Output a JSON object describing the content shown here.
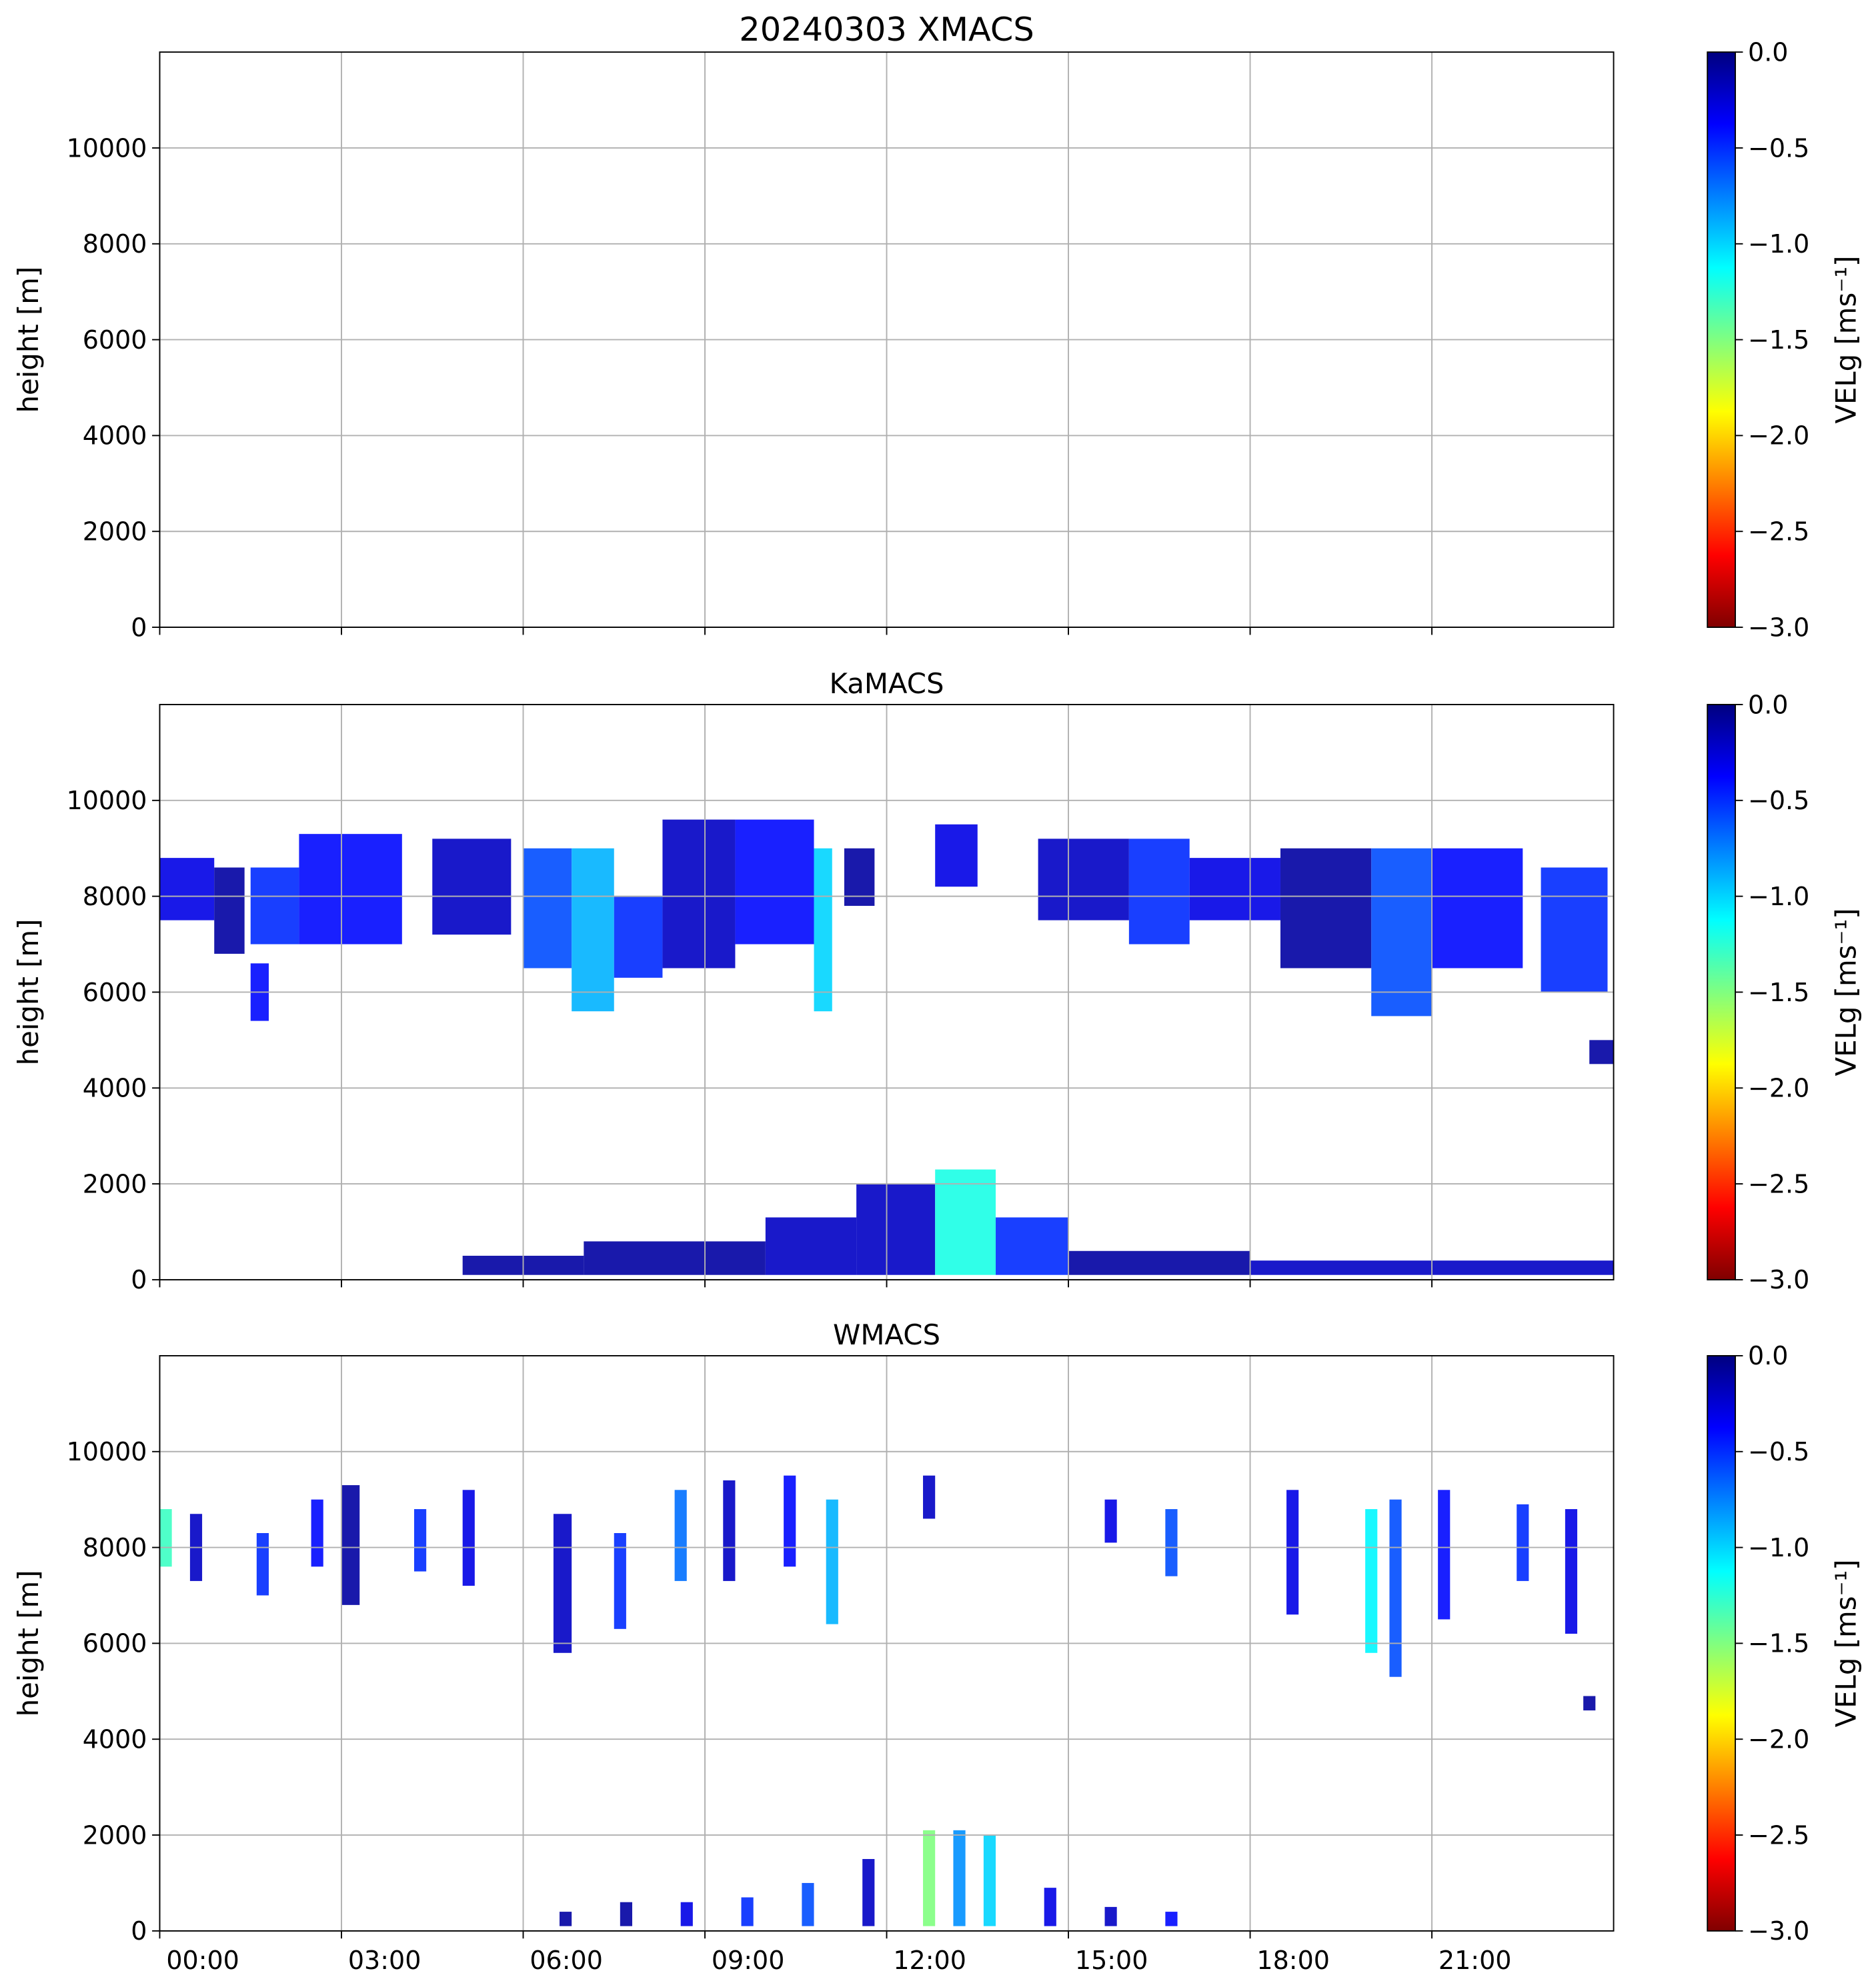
{
  "chart_data": [
    {
      "type": "heatmap",
      "title": "20240303 XMACS",
      "ylabel": "height [m]",
      "xlim": [
        0,
        24
      ],
      "ylim": [
        0,
        12000
      ],
      "yticks": [
        0,
        2000,
        4000,
        6000,
        8000,
        10000
      ],
      "grid": true,
      "colorbar": {
        "label": "VELg [ms⁻¹]",
        "lim": [
          -3,
          0
        ],
        "colormap": "jet_r",
        "ticks": [
          {
            "value": 0,
            "label": "0.0"
          },
          {
            "value": -0.5,
            "label": "−0.5"
          },
          {
            "value": -1,
            "label": "−1.0"
          },
          {
            "value": -1.5,
            "label": "−1.5"
          },
          {
            "value": -2,
            "label": "−2.0"
          },
          {
            "value": -2.5,
            "label": "−2.5"
          },
          {
            "value": -3,
            "label": "−3.0"
          }
        ]
      },
      "echoes": []
    },
    {
      "type": "heatmap",
      "title": "KaMACS",
      "ylabel": "height [m]",
      "xlim": [
        0,
        24
      ],
      "ylim": [
        0,
        12000
      ],
      "yticks": [
        0,
        2000,
        4000,
        6000,
        8000,
        10000
      ],
      "grid": true,
      "colorbar": {
        "label": "VELg [ms⁻¹]",
        "lim": [
          -3,
          0
        ],
        "colormap": "jet_r",
        "ticks": [
          {
            "value": 0,
            "label": "0.0"
          },
          {
            "value": -0.5,
            "label": "−0.5"
          },
          {
            "value": -1,
            "label": "−1.0"
          },
          {
            "value": -1.5,
            "label": "−1.5"
          },
          {
            "value": -2,
            "label": "−2.0"
          },
          {
            "value": -2.5,
            "label": "−2.5"
          },
          {
            "value": -3,
            "label": "−3.0"
          }
        ]
      },
      "echoes": [
        {
          "x0": 0,
          "x1": 0.9,
          "y0": 7500,
          "y1": 8800,
          "value": -0.3
        },
        {
          "x0": 0.9,
          "x1": 1.4,
          "y0": 6800,
          "y1": 8600,
          "value": -0.1
        },
        {
          "x0": 1.5,
          "x1": 2.3,
          "y0": 7000,
          "y1": 8600,
          "value": -0.5
        },
        {
          "x0": 1.5,
          "x1": 1.8,
          "y0": 5400,
          "y1": 6600,
          "value": -0.4
        },
        {
          "x0": 2.3,
          "x1": 4,
          "y0": 7000,
          "y1": 9300,
          "value": -0.4
        },
        {
          "x0": 4.5,
          "x1": 5.8,
          "y0": 7200,
          "y1": 9200,
          "value": -0.2
        },
        {
          "x0": 6,
          "x1": 6.8,
          "y0": 6500,
          "y1": 9000,
          "value": -0.6
        },
        {
          "x0": 6.8,
          "x1": 7.5,
          "y0": 5600,
          "y1": 9000,
          "value": -0.9
        },
        {
          "x0": 7.5,
          "x1": 8.3,
          "y0": 6300,
          "y1": 8000,
          "value": -0.5
        },
        {
          "x0": 8.3,
          "x1": 9.5,
          "y0": 6500,
          "y1": 9600,
          "value": -0.2
        },
        {
          "x0": 9.5,
          "x1": 10.8,
          "y0": 7000,
          "y1": 9600,
          "value": -0.4
        },
        {
          "x0": 10.8,
          "x1": 11.1,
          "y0": 5600,
          "y1": 9000,
          "value": -1.0
        },
        {
          "x0": 11.3,
          "x1": 11.8,
          "y0": 7800,
          "y1": 9000,
          "value": -0.1
        },
        {
          "x0": 12.8,
          "x1": 13.5,
          "y0": 8200,
          "y1": 9500,
          "value": -0.3
        },
        {
          "x0": 14.5,
          "x1": 16,
          "y0": 7500,
          "y1": 9200,
          "value": -0.2
        },
        {
          "x0": 16,
          "x1": 17,
          "y0": 7000,
          "y1": 9200,
          "value": -0.5
        },
        {
          "x0": 17,
          "x1": 18.5,
          "y0": 7500,
          "y1": 8800,
          "value": -0.3
        },
        {
          "x0": 18.5,
          "x1": 20,
          "y0": 6500,
          "y1": 9000,
          "value": -0.1
        },
        {
          "x0": 20,
          "x1": 21,
          "y0": 5500,
          "y1": 9000,
          "value": -0.6
        },
        {
          "x0": 21,
          "x1": 22.5,
          "y0": 6500,
          "y1": 9000,
          "value": -0.4
        },
        {
          "x0": 22.8,
          "x1": 23.9,
          "y0": 6000,
          "y1": 8600,
          "value": -0.5
        },
        {
          "x0": 23.6,
          "x1": 24,
          "y0": 4500,
          "y1": 5000,
          "value": -0.1
        },
        {
          "x0": 5,
          "x1": 7,
          "y0": 100,
          "y1": 500,
          "value": -0.1
        },
        {
          "x0": 7,
          "x1": 10,
          "y0": 100,
          "y1": 800,
          "value": -0.1
        },
        {
          "x0": 10,
          "x1": 11.5,
          "y0": 100,
          "y1": 1300,
          "value": -0.2
        },
        {
          "x0": 11.5,
          "x1": 12.8,
          "y0": 100,
          "y1": 2000,
          "value": -0.2
        },
        {
          "x0": 12.8,
          "x1": 13.8,
          "y0": 100,
          "y1": 2300,
          "value": -1.2
        },
        {
          "x0": 13.8,
          "x1": 15,
          "y0": 100,
          "y1": 1300,
          "value": -0.5
        },
        {
          "x0": 15,
          "x1": 18,
          "y0": 100,
          "y1": 600,
          "value": -0.1
        },
        {
          "x0": 18,
          "x1": 24,
          "y0": 100,
          "y1": 400,
          "value": -0.2
        }
      ]
    },
    {
      "type": "heatmap",
      "title": "WMACS",
      "ylabel": "height [m]",
      "xlim": [
        0,
        24
      ],
      "ylim": [
        0,
        12000
      ],
      "xticks": [
        {
          "value": 0,
          "label": "00:00"
        },
        {
          "value": 3,
          "label": "03:00"
        },
        {
          "value": 6,
          "label": "06:00"
        },
        {
          "value": 9,
          "label": "09:00"
        },
        {
          "value": 12,
          "label": "12:00"
        },
        {
          "value": 15,
          "label": "15:00"
        },
        {
          "value": 18,
          "label": "18:00"
        },
        {
          "value": 21,
          "label": "21:00"
        }
      ],
      "yticks": [
        0,
        2000,
        4000,
        6000,
        8000,
        10000
      ],
      "grid": true,
      "colorbar": {
        "label": "VELg [ms⁻¹]",
        "lim": [
          -3,
          0
        ],
        "colormap": "jet_r",
        "ticks": [
          {
            "value": 0,
            "label": "0.0"
          },
          {
            "value": -0.5,
            "label": "−0.5"
          },
          {
            "value": -1,
            "label": "−1.0"
          },
          {
            "value": -1.5,
            "label": "−1.5"
          },
          {
            "value": -2,
            "label": "−2.0"
          },
          {
            "value": -2.5,
            "label": "−2.5"
          },
          {
            "value": -3,
            "label": "−3.0"
          }
        ]
      },
      "echoes": [
        {
          "x0": 0,
          "x1": 0.2,
          "y0": 7600,
          "y1": 8800,
          "value": -1.3
        },
        {
          "x0": 0.5,
          "x1": 0.7,
          "y0": 7300,
          "y1": 8700,
          "value": -0.2
        },
        {
          "x0": 1.6,
          "x1": 1.8,
          "y0": 7000,
          "y1": 8300,
          "value": -0.5
        },
        {
          "x0": 2.5,
          "x1": 2.7,
          "y0": 7600,
          "y1": 9000,
          "value": -0.4
        },
        {
          "x0": 3,
          "x1": 3.3,
          "y0": 6800,
          "y1": 9300,
          "value": -0.1
        },
        {
          "x0": 4.2,
          "x1": 4.4,
          "y0": 7500,
          "y1": 8800,
          "value": -0.5
        },
        {
          "x0": 5,
          "x1": 5.2,
          "y0": 7200,
          "y1": 9200,
          "value": -0.3
        },
        {
          "x0": 6.5,
          "x1": 6.8,
          "y0": 5800,
          "y1": 8700,
          "value": -0.2
        },
        {
          "x0": 7.5,
          "x1": 7.7,
          "y0": 6300,
          "y1": 8300,
          "value": -0.5
        },
        {
          "x0": 8.5,
          "x1": 8.7,
          "y0": 7300,
          "y1": 9200,
          "value": -0.7
        },
        {
          "x0": 9.3,
          "x1": 9.5,
          "y0": 7300,
          "y1": 9400,
          "value": -0.2
        },
        {
          "x0": 10.3,
          "x1": 10.5,
          "y0": 7600,
          "y1": 9500,
          "value": -0.4
        },
        {
          "x0": 11,
          "x1": 11.2,
          "y0": 6400,
          "y1": 9000,
          "value": -0.9
        },
        {
          "x0": 12.6,
          "x1": 12.8,
          "y0": 8600,
          "y1": 9500,
          "value": -0.2
        },
        {
          "x0": 15.6,
          "x1": 15.8,
          "y0": 8100,
          "y1": 9000,
          "value": -0.3
        },
        {
          "x0": 16.6,
          "x1": 16.8,
          "y0": 7400,
          "y1": 8800,
          "value": -0.6
        },
        {
          "x0": 18.6,
          "x1": 18.8,
          "y0": 6600,
          "y1": 9200,
          "value": -0.3
        },
        {
          "x0": 19.9,
          "x1": 20.1,
          "y0": 5800,
          "y1": 8800,
          "value": -1.1
        },
        {
          "x0": 20.3,
          "x1": 20.5,
          "y0": 5300,
          "y1": 9000,
          "value": -0.6
        },
        {
          "x0": 21.1,
          "x1": 21.3,
          "y0": 6500,
          "y1": 9200,
          "value": -0.4
        },
        {
          "x0": 22.4,
          "x1": 22.6,
          "y0": 7300,
          "y1": 8900,
          "value": -0.5
        },
        {
          "x0": 23.2,
          "x1": 23.4,
          "y0": 6200,
          "y1": 8800,
          "value": -0.3
        },
        {
          "x0": 6.6,
          "x1": 6.8,
          "y0": 100,
          "y1": 400,
          "value": -0.1
        },
        {
          "x0": 7.6,
          "x1": 7.8,
          "y0": 100,
          "y1": 600,
          "value": -0.1
        },
        {
          "x0": 8.6,
          "x1": 8.8,
          "y0": 100,
          "y1": 600,
          "value": -0.3
        },
        {
          "x0": 9.6,
          "x1": 9.8,
          "y0": 100,
          "y1": 700,
          "value": -0.5
        },
        {
          "x0": 10.6,
          "x1": 10.8,
          "y0": 100,
          "y1": 1000,
          "value": -0.6
        },
        {
          "x0": 11.6,
          "x1": 11.8,
          "y0": 100,
          "y1": 1500,
          "value": -0.2
        },
        {
          "x0": 12.6,
          "x1": 12.8,
          "y0": 100,
          "y1": 2100,
          "value": -1.5
        },
        {
          "x0": 13.1,
          "x1": 13.3,
          "y0": 100,
          "y1": 2100,
          "value": -0.8
        },
        {
          "x0": 13.6,
          "x1": 13.8,
          "y0": 100,
          "y1": 2000,
          "value": -1.0
        },
        {
          "x0": 14.6,
          "x1": 14.8,
          "y0": 100,
          "y1": 900,
          "value": -0.3
        },
        {
          "x0": 15.6,
          "x1": 15.8,
          "y0": 100,
          "y1": 500,
          "value": -0.2
        },
        {
          "x0": 16.6,
          "x1": 16.8,
          "y0": 100,
          "y1": 400,
          "value": -0.4
        },
        {
          "x0": 23.5,
          "x1": 23.7,
          "y0": 4600,
          "y1": 4900,
          "value": -0.1
        }
      ]
    }
  ]
}
